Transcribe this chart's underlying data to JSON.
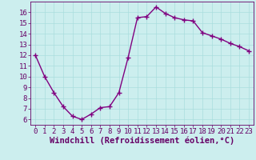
{
  "x": [
    0,
    1,
    2,
    3,
    4,
    5,
    6,
    7,
    8,
    9,
    10,
    11,
    12,
    13,
    14,
    15,
    16,
    17,
    18,
    19,
    20,
    21,
    22,
    23
  ],
  "y": [
    12.0,
    10.0,
    8.5,
    7.2,
    6.3,
    6.0,
    6.5,
    7.1,
    7.2,
    8.5,
    11.8,
    15.5,
    15.6,
    16.5,
    15.9,
    15.5,
    15.3,
    15.2,
    14.1,
    13.8,
    13.5,
    13.1,
    12.8,
    12.4
  ],
  "line_color": "#800080",
  "marker": "+",
  "marker_size": 4,
  "marker_linewidth": 1.0,
  "linewidth": 1.0,
  "background_color": "#cceeee",
  "grid_color": "#aadddd",
  "xlabel": "Windchill (Refroidissement éolien,°C)",
  "xlim": [
    -0.5,
    23.5
  ],
  "ylim": [
    5.5,
    17.0
  ],
  "yticks": [
    6,
    7,
    8,
    9,
    10,
    11,
    12,
    13,
    14,
    15,
    16
  ],
  "xticks": [
    0,
    1,
    2,
    3,
    4,
    5,
    6,
    7,
    8,
    9,
    10,
    11,
    12,
    13,
    14,
    15,
    16,
    17,
    18,
    19,
    20,
    21,
    22,
    23
  ],
  "tick_fontsize": 6.5,
  "xlabel_fontsize": 7.5,
  "label_color": "#660066",
  "spine_color": "#660066",
  "grid_linewidth": 0.5
}
